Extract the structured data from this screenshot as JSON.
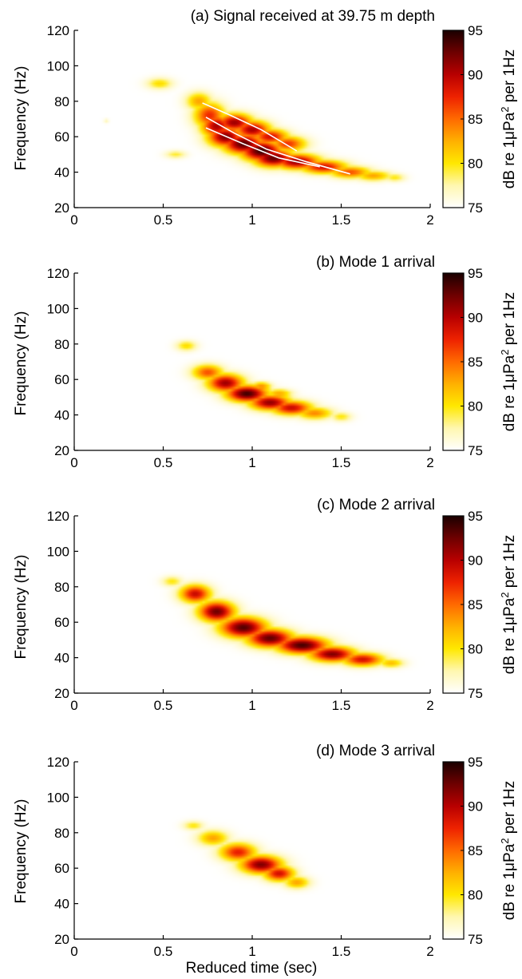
{
  "figure": {
    "xlabel": "Reduced time (sec)",
    "colorbar": {
      "label_prefix": "dB re 1",
      "label_mu": "μ",
      "label_unit": "Pa",
      "label_sup": "2",
      "label_suffix": " per 1Hz",
      "ticks": [
        "95",
        "90",
        "85",
        "80",
        "75"
      ],
      "range": [
        75,
        95
      ],
      "colors": [
        "#ffffff",
        "#fff7b0",
        "#ffe800",
        "#ffb000",
        "#ff6a00",
        "#ee2200",
        "#b80000",
        "#6e0000",
        "#1a0000"
      ]
    }
  },
  "chart_data": [
    {
      "type": "heatmap",
      "title": "(a) Signal received at 39.75 m depth",
      "xlabel": "",
      "ylabel": "Frequency (Hz)",
      "xlim": [
        0,
        2
      ],
      "ylim": [
        20,
        120
      ],
      "xticks": [
        "0",
        "0.5",
        "1",
        "1.5",
        "2"
      ],
      "yticks": [
        "120",
        "100",
        "80",
        "60",
        "40",
        "20"
      ],
      "blobs": [
        {
          "x": 0.48,
          "y": 90,
          "sx": 0.05,
          "sy": 2.2,
          "a": 0.28
        },
        {
          "x": 0.57,
          "y": 50,
          "sx": 0.04,
          "sy": 1.5,
          "a": 0.22
        },
        {
          "x": 0.18,
          "y": 69,
          "sx": 0.01,
          "sy": 0.8,
          "a": 0.12
        },
        {
          "x": 0.7,
          "y": 80,
          "sx": 0.05,
          "sy": 3.5,
          "a": 0.4
        },
        {
          "x": 0.76,
          "y": 72,
          "sx": 0.06,
          "sy": 5.0,
          "a": 0.62
        },
        {
          "x": 0.8,
          "y": 66,
          "sx": 0.06,
          "sy": 4.5,
          "a": 0.78
        },
        {
          "x": 0.85,
          "y": 60,
          "sx": 0.07,
          "sy": 4.0,
          "a": 0.85
        },
        {
          "x": 0.95,
          "y": 56,
          "sx": 0.08,
          "sy": 4.0,
          "a": 0.92
        },
        {
          "x": 1.05,
          "y": 52,
          "sx": 0.08,
          "sy": 4.0,
          "a": 0.96
        },
        {
          "x": 1.12,
          "y": 48,
          "sx": 0.08,
          "sy": 3.5,
          "a": 0.9
        },
        {
          "x": 0.9,
          "y": 68,
          "sx": 0.07,
          "sy": 3.5,
          "a": 0.8
        },
        {
          "x": 1.0,
          "y": 64,
          "sx": 0.07,
          "sy": 3.5,
          "a": 0.78
        },
        {
          "x": 1.1,
          "y": 60,
          "sx": 0.07,
          "sy": 3.0,
          "a": 0.7
        },
        {
          "x": 1.2,
          "y": 56,
          "sx": 0.07,
          "sy": 3.0,
          "a": 0.6
        },
        {
          "x": 1.25,
          "y": 46,
          "sx": 0.09,
          "sy": 3.0,
          "a": 0.82
        },
        {
          "x": 1.4,
          "y": 43,
          "sx": 0.09,
          "sy": 2.6,
          "a": 0.7
        },
        {
          "x": 1.55,
          "y": 40,
          "sx": 0.08,
          "sy": 2.3,
          "a": 0.55
        },
        {
          "x": 1.68,
          "y": 38,
          "sx": 0.07,
          "sy": 2.0,
          "a": 0.4
        },
        {
          "x": 1.8,
          "y": 37,
          "sx": 0.04,
          "sy": 1.6,
          "a": 0.25
        }
      ],
      "overlay_curves": [
        [
          [
            0.72,
            79
          ],
          [
            0.88,
            72
          ],
          [
            1.05,
            64
          ],
          [
            1.25,
            52
          ]
        ],
        [
          [
            0.74,
            71
          ],
          [
            0.9,
            62
          ],
          [
            1.08,
            53
          ],
          [
            1.3,
            46
          ],
          [
            1.55,
            39
          ]
        ],
        [
          [
            0.74,
            65
          ],
          [
            0.95,
            56
          ],
          [
            1.15,
            48
          ],
          [
            1.38,
            43
          ]
        ]
      ]
    },
    {
      "type": "heatmap",
      "title": "(b) Mode 1 arrival",
      "xlabel": "",
      "ylabel": "Frequency (Hz)",
      "xlim": [
        0,
        2
      ],
      "ylim": [
        20,
        120
      ],
      "xticks": [
        "0",
        "0.5",
        "1",
        "1.5",
        "2"
      ],
      "yticks": [
        "120",
        "100",
        "80",
        "60",
        "40",
        "20"
      ],
      "blobs": [
        {
          "x": 0.63,
          "y": 79,
          "sx": 0.04,
          "sy": 2.0,
          "a": 0.28
        },
        {
          "x": 0.75,
          "y": 64,
          "sx": 0.06,
          "sy": 3.0,
          "a": 0.55
        },
        {
          "x": 0.85,
          "y": 58,
          "sx": 0.07,
          "sy": 3.5,
          "a": 0.8
        },
        {
          "x": 0.97,
          "y": 52,
          "sx": 0.08,
          "sy": 3.2,
          "a": 0.95
        },
        {
          "x": 1.1,
          "y": 47,
          "sx": 0.08,
          "sy": 3.0,
          "a": 0.82
        },
        {
          "x": 1.22,
          "y": 44,
          "sx": 0.08,
          "sy": 2.8,
          "a": 0.72
        },
        {
          "x": 1.35,
          "y": 41,
          "sx": 0.07,
          "sy": 2.4,
          "a": 0.45
        },
        {
          "x": 1.5,
          "y": 39,
          "sx": 0.04,
          "sy": 1.8,
          "a": 0.25
        },
        {
          "x": 1.05,
          "y": 56,
          "sx": 0.04,
          "sy": 1.8,
          "a": 0.45
        },
        {
          "x": 1.15,
          "y": 52,
          "sx": 0.05,
          "sy": 1.8,
          "a": 0.4
        }
      ],
      "overlay_curves": []
    },
    {
      "type": "heatmap",
      "title": "(c) Mode 2 arrival",
      "xlabel": "",
      "ylabel": "Frequency (Hz)",
      "xlim": [
        0,
        2
      ],
      "ylim": [
        20,
        120
      ],
      "xticks": [
        "0",
        "0.5",
        "1",
        "1.5",
        "2"
      ],
      "yticks": [
        "120",
        "100",
        "80",
        "60",
        "40",
        "20"
      ],
      "blobs": [
        {
          "x": 0.55,
          "y": 83,
          "sx": 0.04,
          "sy": 2.0,
          "a": 0.25
        },
        {
          "x": 0.68,
          "y": 76,
          "sx": 0.06,
          "sy": 3.5,
          "a": 0.72
        },
        {
          "x": 0.8,
          "y": 66,
          "sx": 0.07,
          "sy": 4.0,
          "a": 0.88
        },
        {
          "x": 0.95,
          "y": 57,
          "sx": 0.09,
          "sy": 4.0,
          "a": 0.92
        },
        {
          "x": 1.1,
          "y": 51,
          "sx": 0.09,
          "sy": 3.6,
          "a": 0.9
        },
        {
          "x": 1.28,
          "y": 47,
          "sx": 0.1,
          "sy": 3.3,
          "a": 0.94
        },
        {
          "x": 1.45,
          "y": 42,
          "sx": 0.09,
          "sy": 3.0,
          "a": 0.85
        },
        {
          "x": 1.62,
          "y": 39,
          "sx": 0.08,
          "sy": 2.6,
          "a": 0.7
        },
        {
          "x": 1.78,
          "y": 37,
          "sx": 0.05,
          "sy": 1.8,
          "a": 0.35
        }
      ],
      "overlay_curves": []
    },
    {
      "type": "heatmap",
      "title": "(d) Mode 3 arrival",
      "xlabel": "Reduced time (sec)",
      "ylabel": "Frequency (Hz)",
      "xlim": [
        0,
        2
      ],
      "ylim": [
        20,
        120
      ],
      "xticks": [
        "0",
        "0.5",
        "1",
        "1.5",
        "2"
      ],
      "yticks": [
        "120",
        "100",
        "80",
        "60",
        "40",
        "20"
      ],
      "blobs": [
        {
          "x": 0.67,
          "y": 84,
          "sx": 0.04,
          "sy": 1.8,
          "a": 0.25
        },
        {
          "x": 0.78,
          "y": 77,
          "sx": 0.06,
          "sy": 3.0,
          "a": 0.4
        },
        {
          "x": 0.92,
          "y": 69,
          "sx": 0.07,
          "sy": 3.5,
          "a": 0.65
        },
        {
          "x": 1.05,
          "y": 62,
          "sx": 0.08,
          "sy": 3.5,
          "a": 0.85
        },
        {
          "x": 1.15,
          "y": 57,
          "sx": 0.06,
          "sy": 3.0,
          "a": 0.7
        },
        {
          "x": 1.25,
          "y": 52,
          "sx": 0.05,
          "sy": 2.4,
          "a": 0.4
        }
      ],
      "overlay_curves": []
    }
  ]
}
